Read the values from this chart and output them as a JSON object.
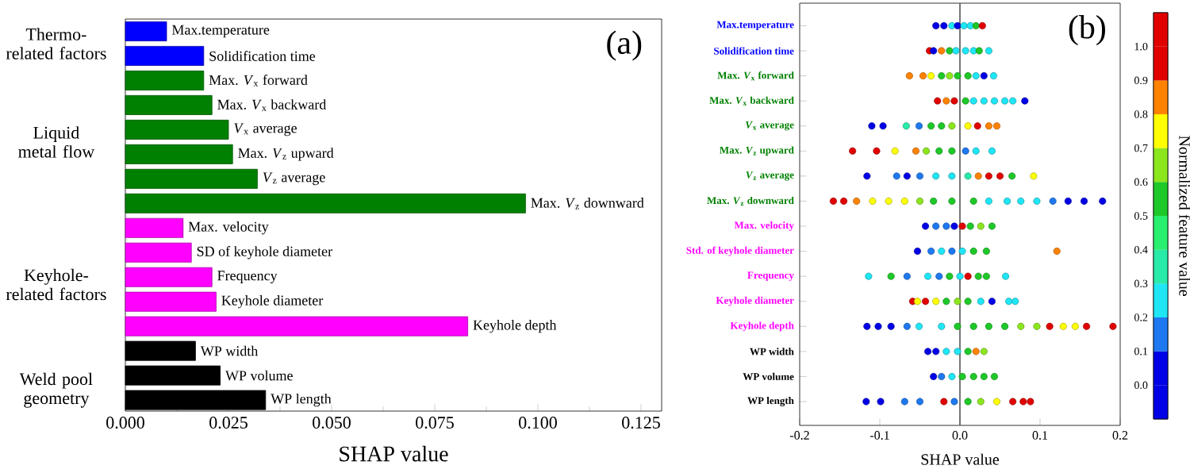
{
  "chart_data": [
    {
      "type": "bar",
      "orientation": "horizontal",
      "categories": [
        "Max.temperature",
        "Solidification time",
        "Max. *V*$_{x}$ forward",
        "Max. *V*$_{x}$ backward",
        "*V*$_{x}$ average",
        "Max. *V*$_{z}$ upward",
        "*V*$_{z}$ average",
        "Max. *V*$_{z}$ downward",
        "Max. velocity",
        "SD of keyhole diameter",
        "Frequency",
        "Keyhole diameter",
        "Keyhole depth",
        "WP width",
        "WP volume",
        "WP length"
      ],
      "values": [
        0.01,
        0.019,
        0.019,
        0.021,
        0.025,
        0.026,
        0.032,
        0.097,
        0.014,
        0.016,
        0.021,
        0.022,
        0.083,
        0.017,
        0.023,
        0.034
      ],
      "colors": [
        "#0000ff",
        "#0000ff",
        "#008000",
        "#008000",
        "#008000",
        "#008000",
        "#008000",
        "#008000",
        "#ff00ff",
        "#ff00ff",
        "#ff00ff",
        "#ff00ff",
        "#ff00ff",
        "#000000",
        "#000000",
        "#000000"
      ],
      "xlabel": "SHAP value",
      "xlim": [
        0,
        0.13
      ],
      "xticks": [
        {
          "value": 0,
          "label": "0.000"
        },
        {
          "value": 0.025,
          "label": "0.025"
        },
        {
          "value": 0.05,
          "label": "0.050"
        },
        {
          "value": 0.075,
          "label": "0.075"
        },
        {
          "value": 0.1,
          "label": "0.100"
        },
        {
          "value": 0.125,
          "label": "0.125"
        }
      ],
      "annotations": [
        "Thermo-related factors",
        "Liquid metal flow",
        "Keyhole-related factors",
        "Weld pool geometry",
        "(a)"
      ]
    },
    {
      "type": "scatter",
      "orientation": "horizontal",
      "marker": "circle",
      "categories": [
        "Max.temperature",
        "Solidification time",
        "Max. *V*$_{x}$ forward",
        "Max. *V*$_{x}$ backward",
        "*V*$_{x}$ average",
        "Max. *V*$_{z}$ upward",
        "*V*$_{z}$ average",
        "Max. *V*$_{z}$ downward",
        "Max. velocity",
        "Std. of keyhole diameter",
        "Frequency",
        "Keyhole diameter",
        "Keyhole depth",
        "WP width",
        "WP volume",
        "WP length"
      ],
      "series": [
        {
          "values": [
            -0.03,
            -0.038,
            -0.063,
            -0.028,
            -0.11,
            -0.134,
            -0.116,
            -0.158,
            -0.043,
            -0.053,
            -0.114,
            -0.059,
            -0.116,
            -0.04,
            -0.033,
            -0.117
          ],
          "colors": [
            "#0000e6",
            "#e10000",
            "#ff8200",
            "#e10000",
            "#0000e6",
            "#e10000",
            "#0000e6",
            "#e10000",
            "#0000e6",
            "#0000e6",
            "#1ee6f5",
            "#e10000",
            "#0000e6",
            "#0000e6",
            "#0000e6",
            "#0000e6"
          ]
        },
        {
          "values": [
            -0.02,
            -0.033,
            -0.046,
            -0.017,
            -0.096,
            -0.104,
            -0.079,
            -0.145,
            -0.03,
            -0.036,
            -0.086,
            -0.053,
            -0.102,
            -0.03,
            -0.023,
            -0.099
          ],
          "colors": [
            "#0000e6",
            "#0000e6",
            "#ff8200",
            "#ff8200",
            "#0000e6",
            "#e10000",
            "#1e78f0",
            "#e10000",
            "#1e78f0",
            "#1e78f0",
            "#1ec828",
            "#ffff00",
            "#0000e6",
            "#0000e6",
            "#1e78f0",
            "#0000e6"
          ]
        },
        {
          "values": [
            -0.01,
            -0.023,
            -0.036,
            -0.007,
            -0.067,
            -0.081,
            -0.066,
            -0.129,
            -0.017,
            -0.023,
            -0.066,
            -0.043,
            -0.086,
            -0.017,
            -0.01,
            -0.069
          ],
          "colors": [
            "#1ee6f5",
            "#ff8200",
            "#ffff00",
            "#e10000",
            "#28ebaa",
            "#ffff00",
            "#0000e6",
            "#ff8200",
            "#1e78f0",
            "#1ee6f5",
            "#1e78f0",
            "#e10000",
            "#0000e6",
            "#1ee6f5",
            "#1ee6f5",
            "#1e78f0"
          ]
        },
        {
          "values": [
            -0.003,
            -0.013,
            -0.023,
            0.007,
            -0.051,
            -0.055,
            -0.05,
            -0.109,
            -0.007,
            -0.01,
            -0.04,
            -0.03,
            -0.066,
            -0.003,
            0.003,
            -0.05
          ],
          "colors": [
            "#0000e6",
            "#1ec828",
            "#1ec828",
            "#1ec828",
            "#1e78f0",
            "#ff8200",
            "#1e78f0",
            "#ffff00",
            "#0000e6",
            "#1e78f0",
            "#1ee6f5",
            "#ffff00",
            "#1e78f0",
            "#1ee6f5",
            "#1ec828",
            "#1e78f0"
          ]
        },
        {
          "values": [
            0.005,
            -0.005,
            -0.013,
            0.017,
            -0.036,
            -0.042,
            -0.03,
            -0.089,
            0.003,
            0.003,
            -0.026,
            -0.017,
            -0.051,
            0.01,
            0.017,
            -0.02
          ],
          "colors": [
            "#1ee6f5",
            "#1ee6f5",
            "#8ce61e",
            "#1ee6f5",
            "#1ec828",
            "#8ce61e",
            "#1ee6f5",
            "#ffff00",
            "#e10000",
            "#1ee6f5",
            "#1e78f0",
            "#1ec828",
            "#1ee6f5",
            "#1ec828",
            "#1ec828",
            "#e10000"
          ]
        },
        {
          "values": [
            0.013,
            0.007,
            -0.003,
            0.03,
            -0.023,
            -0.026,
            -0.01,
            -0.069,
            0.013,
            0.017,
            -0.013,
            -0.003,
            -0.023,
            0.02,
            0.03,
            -0.007
          ],
          "colors": [
            "#1ee6f5",
            "#1ee6f5",
            "#1ec828",
            "#1ee6f5",
            "#1ec828",
            "#1ec828",
            "#1ee6f5",
            "#ffff00",
            "#1ec828",
            "#1ec828",
            "#1ec828",
            "#8ce61e",
            "#1ee6f5",
            "#ff8200",
            "#1ec828",
            "#1e78f0"
          ]
        },
        {
          "values": [
            0.02,
            0.017,
            0.01,
            0.043,
            -0.01,
            -0.01,
            0.01,
            -0.05,
            0.026,
            0.033,
            0.0,
            0.01,
            -0.003,
            0.03,
            0.043,
            0.01
          ],
          "colors": [
            "#1ec828",
            "#1ee6f5",
            "#1ec828",
            "#1ee6f5",
            "#8ce61e",
            "#1ec828",
            "#28ebaa",
            "#8ce61e",
            "#8ce61e",
            "#1ec828",
            "#1ee6f5",
            "#1ec828",
            "#1ec828",
            "#8ce61e",
            "#1ec828",
            "#1ec828"
          ]
        },
        {
          "values": [
            0.028,
            0.024,
            0.02,
            0.056,
            0.01,
            0.007,
            0.023,
            -0.033,
            0.04,
            0.121,
            0.01,
            0.026,
            0.017,
            null,
            null,
            0.026
          ],
          "colors": [
            "#e10000",
            "#1ec828",
            "#1ee6f5",
            "#1ee6f5",
            "#ffff00",
            "#1e78f0",
            "#ff8200",
            "#1ec828",
            "#1ec828",
            "#ff8200",
            "#e10000",
            "#1ee6f5",
            "#1ec828",
            null,
            null,
            "#8ce61e"
          ]
        },
        {
          "values": [
            null,
            0.036,
            0.03,
            0.066,
            0.022,
            0.02,
            0.036,
            -0.01,
            null,
            null,
            0.023,
            0.04,
            0.036,
            null,
            null,
            0.046
          ],
          "colors": [
            null,
            "#1ee6f5",
            "#0000e6",
            "#1ee6f5",
            "#e10000",
            "#1ee6f5",
            "#e10000",
            "#1ec828",
            null,
            null,
            "#1ec828",
            "#0000e6",
            "#1ec828",
            null,
            null,
            "#ffff00"
          ]
        },
        {
          "values": [
            null,
            null,
            0.042,
            0.081,
            0.036,
            0.04,
            0.05,
            0.017,
            null,
            null,
            0.033,
            0.061,
            0.056,
            null,
            null,
            0.066
          ],
          "colors": [
            null,
            null,
            "#1ee6f5",
            "#0000e6",
            "#ff8200",
            "#1ee6f5",
            "#e10000",
            "#1ec828",
            null,
            null,
            "#1ec828",
            "#1ee6f5",
            "#1ec828",
            null,
            null,
            "#e10000"
          ]
        },
        {
          "values": [
            null,
            null,
            null,
            null,
            0.046,
            null,
            0.065,
            0.036,
            null,
            null,
            0.057,
            0.069,
            0.076,
            null,
            null,
            0.079
          ],
          "colors": [
            null,
            null,
            null,
            null,
            "#ff8200",
            null,
            "#1ec828",
            "#1ee6f5",
            null,
            null,
            "#1ee6f5",
            "#1ee6f5",
            "#8ce61e",
            null,
            null,
            "#e10000"
          ]
        },
        {
          "values": [
            null,
            null,
            null,
            null,
            null,
            null,
            0.092,
            0.059,
            null,
            null,
            null,
            null,
            0.096,
            null,
            null,
            0.088
          ],
          "colors": [
            null,
            null,
            null,
            null,
            null,
            null,
            "#ffff00",
            "#1ee6f5",
            null,
            null,
            null,
            null,
            "#8ce61e",
            null,
            null,
            "#e10000"
          ]
        },
        {
          "values": [
            null,
            null,
            null,
            null,
            null,
            null,
            null,
            0.076,
            null,
            null,
            null,
            null,
            0.112,
            null,
            null,
            null
          ],
          "colors": [
            null,
            null,
            null,
            null,
            null,
            null,
            null,
            "#1ee6f5",
            null,
            null,
            null,
            null,
            "#e10000",
            null,
            null,
            null
          ]
        },
        {
          "values": [
            null,
            null,
            null,
            null,
            null,
            null,
            null,
            0.096,
            null,
            null,
            null,
            null,
            0.129,
            null,
            null,
            null
          ],
          "colors": [
            null,
            null,
            null,
            null,
            null,
            null,
            null,
            "#1ee6f5",
            null,
            null,
            null,
            null,
            "#ffff00",
            null,
            null,
            null
          ]
        },
        {
          "values": [
            null,
            null,
            null,
            null,
            null,
            null,
            null,
            0.116,
            null,
            null,
            null,
            null,
            0.144,
            null,
            null,
            null
          ],
          "colors": [
            null,
            null,
            null,
            null,
            null,
            null,
            null,
            "#1e78f0",
            null,
            null,
            null,
            null,
            "#ffff00",
            null,
            null,
            null
          ]
        },
        {
          "values": [
            null,
            null,
            null,
            null,
            null,
            null,
            null,
            0.135,
            null,
            null,
            null,
            null,
            0.158,
            null,
            null,
            null
          ],
          "colors": [
            null,
            null,
            null,
            null,
            null,
            null,
            null,
            "#0000e6",
            null,
            null,
            null,
            null,
            "#e10000",
            null,
            null,
            null
          ]
        },
        {
          "values": [
            null,
            null,
            null,
            null,
            null,
            null,
            null,
            0.155,
            null,
            null,
            null,
            null,
            0.191,
            null,
            null,
            null
          ],
          "colors": [
            null,
            null,
            null,
            null,
            null,
            null,
            null,
            "#0000e6",
            null,
            null,
            null,
            null,
            "#e10000",
            null,
            null,
            null
          ]
        },
        {
          "values": [
            null,
            null,
            null,
            null,
            null,
            null,
            null,
            0.178,
            null,
            null,
            null,
            null,
            null,
            null,
            null,
            null
          ],
          "colors": [
            null,
            null,
            null,
            null,
            null,
            null,
            null,
            "#0000e6",
            null,
            null,
            null,
            null,
            null,
            null,
            null,
            null
          ]
        }
      ],
      "xlabel": "SHAP value",
      "xlim": [
        -0.2,
        0.2
      ],
      "xticks": [
        -0.2,
        -0.1,
        {
          "value": 0,
          "label": "0.0"
        },
        0.1,
        0.2
      ],
      "ref_lines": [
        {
          "axis": "x",
          "value": 0,
          "color": "#555555"
        }
      ],
      "clabel": "Normalized feature value",
      "clim": [
        -0.1,
        1.1
      ],
      "cticks": [
        {
          "value": 0,
          "label": "0.0"
        },
        0.1,
        0.2,
        0.3,
        0.4,
        0.5,
        0.6,
        0.7,
        0.8,
        0.9,
        {
          "value": 1,
          "label": "1.0"
        }
      ],
      "annotations": [
        "(b)"
      ]
    }
  ]
}
